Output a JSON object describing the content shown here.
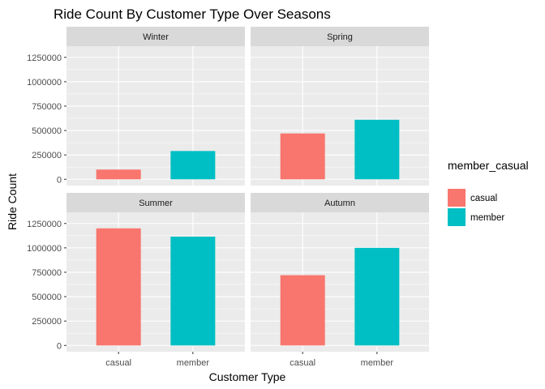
{
  "chart_data": {
    "type": "bar",
    "title": "Ride Count By Customer Type Over Seasons",
    "xlabel": "Customer Type",
    "ylabel": "Ride Count",
    "categories": [
      "casual",
      "member"
    ],
    "ylim": [
      0,
      1300000
    ],
    "yticks": [
      0,
      250000,
      500000,
      750000,
      1000000,
      1250000
    ],
    "ytick_labels": [
      "0",
      "250000",
      "500000",
      "750000",
      "1000000",
      "1250000"
    ],
    "legend": {
      "title": "member_casual",
      "position": "right",
      "entries": [
        "casual",
        "member"
      ]
    },
    "colors": {
      "casual": "#F8766D",
      "member": "#00BFC4"
    },
    "grid": true,
    "panels": [
      {
        "season": "Winter",
        "values": [
          100000,
          290000
        ]
      },
      {
        "season": "Spring",
        "values": [
          470000,
          610000
        ]
      },
      {
        "season": "Summer",
        "values": [
          1200000,
          1115000
        ]
      },
      {
        "season": "Autumn",
        "values": [
          720000,
          1000000
        ]
      }
    ]
  }
}
